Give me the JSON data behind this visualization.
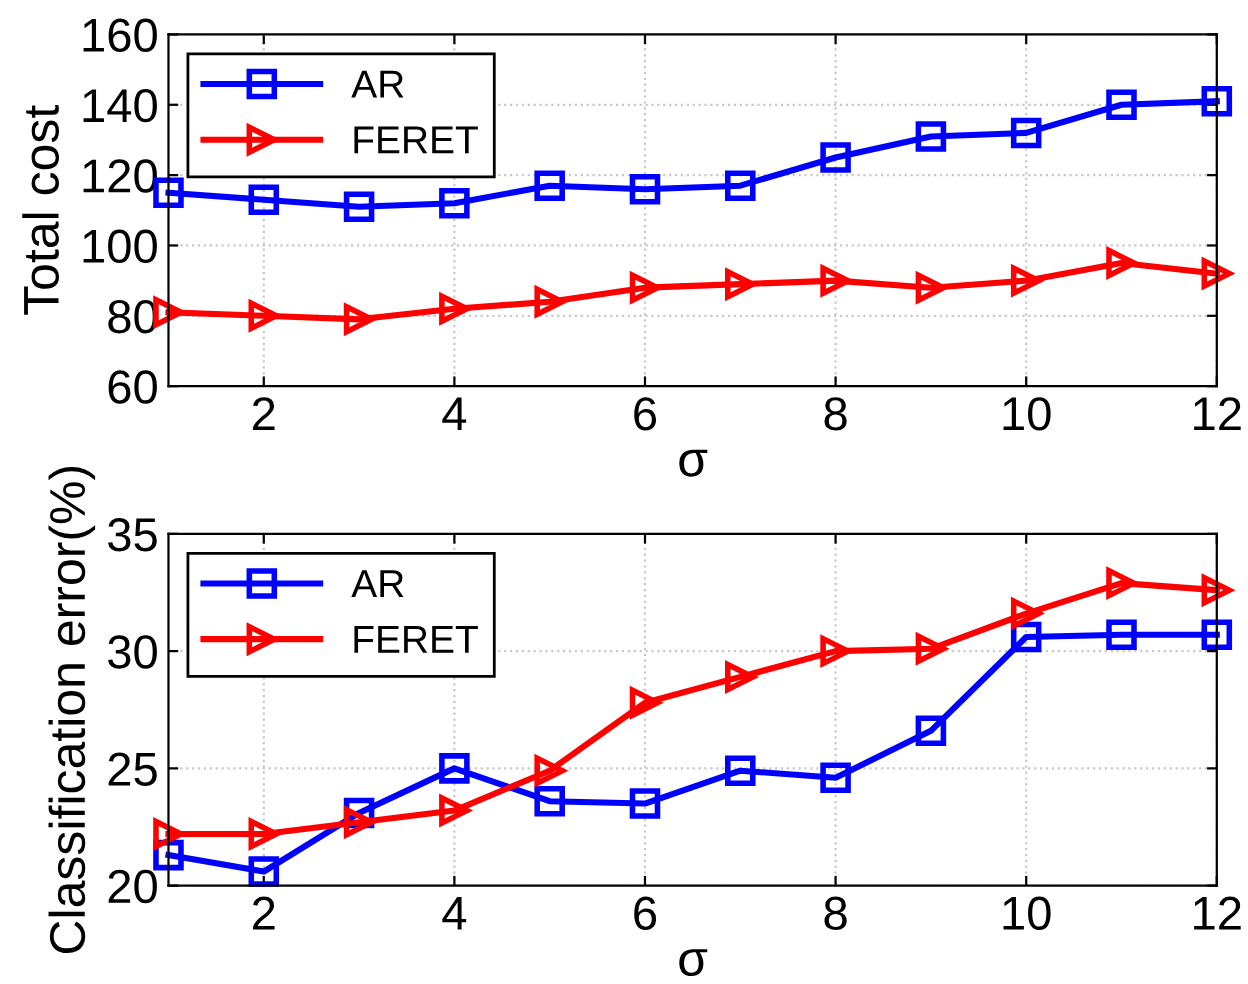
{
  "chart_data": [
    {
      "type": "line",
      "xlabel": "σ",
      "ylabel": "Total cost",
      "x": [
        1,
        2,
        3,
        4,
        5,
        6,
        7,
        8,
        9,
        10,
        11,
        12
      ],
      "xlim": [
        1,
        12
      ],
      "xticks": [
        2,
        4,
        6,
        8,
        10,
        12
      ],
      "ylim": [
        60,
        160
      ],
      "yticks": [
        60,
        80,
        100,
        120,
        140,
        160
      ],
      "grid": true,
      "legend": "top left",
      "series": [
        {
          "name": "AR",
          "color": "#0000ff",
          "marker": "square",
          "values": [
            115,
            113,
            111,
            112,
            117,
            116,
            117,
            125,
            131,
            132,
            140,
            141
          ]
        },
        {
          "name": "FERET",
          "color": "#ff0000",
          "marker": "triangle",
          "values": [
            81,
            80,
            79,
            82,
            84,
            88,
            89,
            90,
            88,
            90,
            95,
            92
          ]
        }
      ]
    },
    {
      "type": "line",
      "xlabel": "σ",
      "ylabel": "Classification error(%)",
      "x": [
        1,
        2,
        3,
        4,
        5,
        6,
        7,
        8,
        9,
        10,
        11,
        12
      ],
      "xlim": [
        1,
        12
      ],
      "xticks": [
        2,
        4,
        6,
        8,
        10,
        12
      ],
      "ylim": [
        20,
        35
      ],
      "yticks": [
        20,
        25,
        30,
        35
      ],
      "grid": true,
      "legend": "top left",
      "series": [
        {
          "name": "AR",
          "color": "#0000ff",
          "marker": "square",
          "values": [
            21.3,
            20.6,
            23.1,
            25.0,
            23.6,
            23.5,
            24.9,
            24.6,
            26.6,
            30.6,
            30.7,
            30.7
          ]
        },
        {
          "name": "FERET",
          "color": "#ff0000",
          "marker": "triangle",
          "values": [
            22.2,
            22.2,
            22.7,
            23.2,
            24.9,
            27.8,
            28.9,
            30.0,
            30.1,
            31.6,
            32.9,
            32.6
          ]
        }
      ]
    }
  ]
}
